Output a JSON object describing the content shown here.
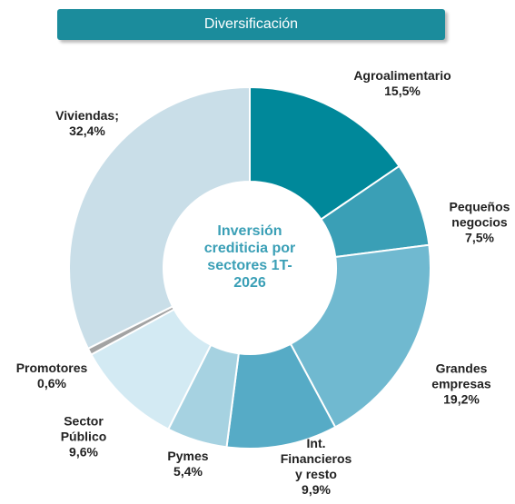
{
  "chart_data": {
    "type": "pie",
    "title": "Diversificación",
    "center_label": "Inversión crediticia por sectores 1T-2026",
    "categories": [
      "Agroalimentario",
      "Pequeños negocios",
      "Grandes empresas",
      "Int. Financieros y resto",
      "Pymes",
      "Sector Público",
      "Promotores",
      "Viviendas;"
    ],
    "values": [
      15.5,
      7.5,
      19.2,
      9.9,
      5.4,
      9.6,
      0.6,
      32.4
    ],
    "value_labels": [
      "15,5%",
      "7,5%",
      "19,2%",
      "9,9%",
      "5,4%",
      "9,6%",
      "0,6%",
      "32,4%"
    ],
    "colors": [
      "#00889a",
      "#3a9fb6",
      "#70b9d0",
      "#56abc6",
      "#a6d2e1",
      "#d3eaf3",
      "#a3a3a3",
      "#c9dee8"
    ]
  }
}
